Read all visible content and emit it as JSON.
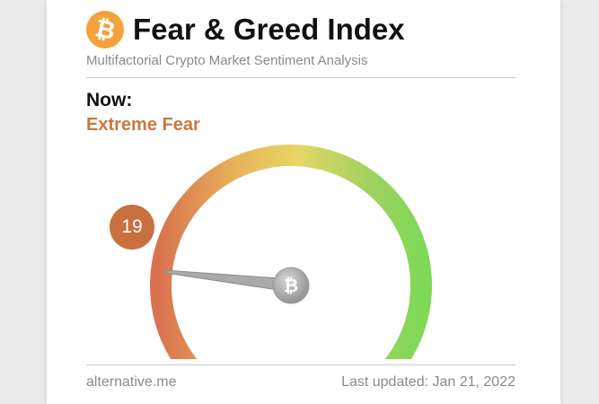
{
  "header": {
    "logo_symbol": "₿",
    "title": "Fear & Greed Index",
    "subtitle": "Multifactorial Crypto Market Sentiment Analysis"
  },
  "current": {
    "label": "Now:",
    "classification": "Extreme Fear",
    "value": "19"
  },
  "gauge": {
    "min": 0,
    "max": 100,
    "value": 19,
    "center_symbol": "₿",
    "colors": [
      "#d9734f",
      "#e8b45a",
      "#e7d666",
      "#9fd15e",
      "#7ed957"
    ]
  },
  "footer": {
    "source": "alternative.me",
    "updated": "Last updated: Jan 21, 2022"
  },
  "colors": {
    "accent": "#c97743",
    "badge": "#c9703f",
    "logo": "#f2a33a"
  }
}
